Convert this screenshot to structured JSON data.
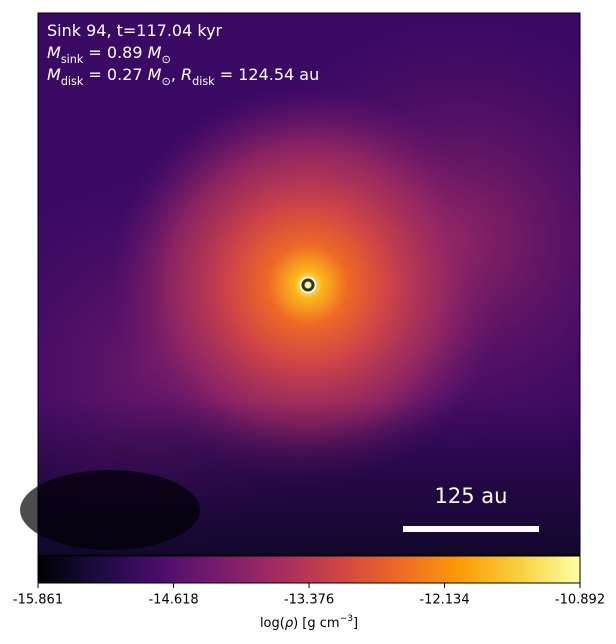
{
  "chart_data": {
    "type": "heatmap",
    "colormap": "inferno",
    "annotations": [
      [
        {
          "text": "Sink 94, t=117.04 kyr"
        }
      ],
      [
        {
          "text": "M",
          "italic": true
        },
        {
          "text": "sink",
          "sub": true
        },
        {
          "text": " = 0.89 "
        },
        {
          "text": "M",
          "italic": true
        },
        {
          "text": "⊙",
          "sub": true
        }
      ],
      [
        {
          "text": "M",
          "italic": true
        },
        {
          "text": "disk",
          "sub": true
        },
        {
          "text": " = 0.27 "
        },
        {
          "text": "M",
          "italic": true
        },
        {
          "text": "⊙",
          "sub": true
        },
        {
          "text": ", "
        },
        {
          "text": "R",
          "italic": true
        },
        {
          "text": "disk",
          "sub": true
        },
        {
          "text": " = 124.54 au"
        }
      ]
    ],
    "scale_bar_label": "125 au",
    "colorbar": {
      "clim": [
        -15.861,
        -10.892
      ],
      "ticks": [
        -15.861,
        -14.618,
        -13.376,
        -12.134,
        -10.892
      ],
      "label": [
        {
          "text": "log("
        },
        {
          "text": "ρ",
          "italic": true
        },
        {
          "text": ") [g cm"
        },
        {
          "text": "−3",
          "sup": true
        },
        {
          "text": "]"
        }
      ]
    }
  }
}
